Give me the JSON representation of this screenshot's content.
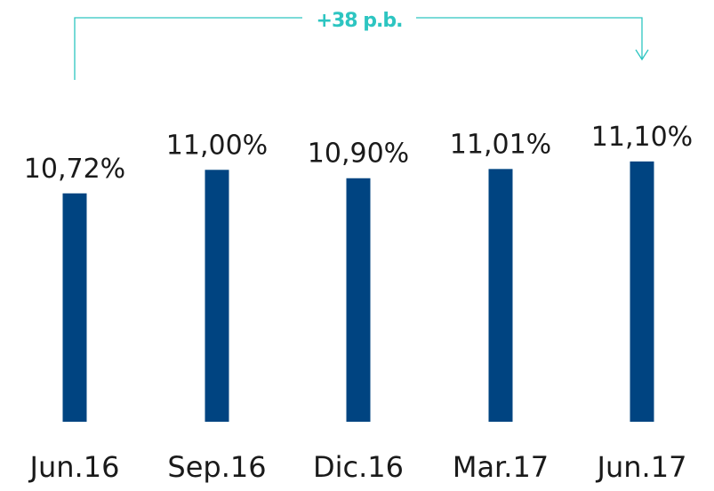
{
  "chart_data": {
    "type": "bar",
    "annotation": "+38 p.b.",
    "categories": [
      "Jun.16",
      "Sep.16",
      "Dic.16",
      "Mar.17",
      "Jun.17"
    ],
    "values": [
      10.72,
      11.0,
      10.9,
      11.01,
      11.1
    ],
    "value_labels": [
      "10,72%",
      "11,00%",
      "10,90%",
      "11,01%",
      "11,10%"
    ],
    "color": "#004481",
    "annotation_color": "#2dc5c1",
    "ylim": [
      8,
      11.5
    ]
  }
}
